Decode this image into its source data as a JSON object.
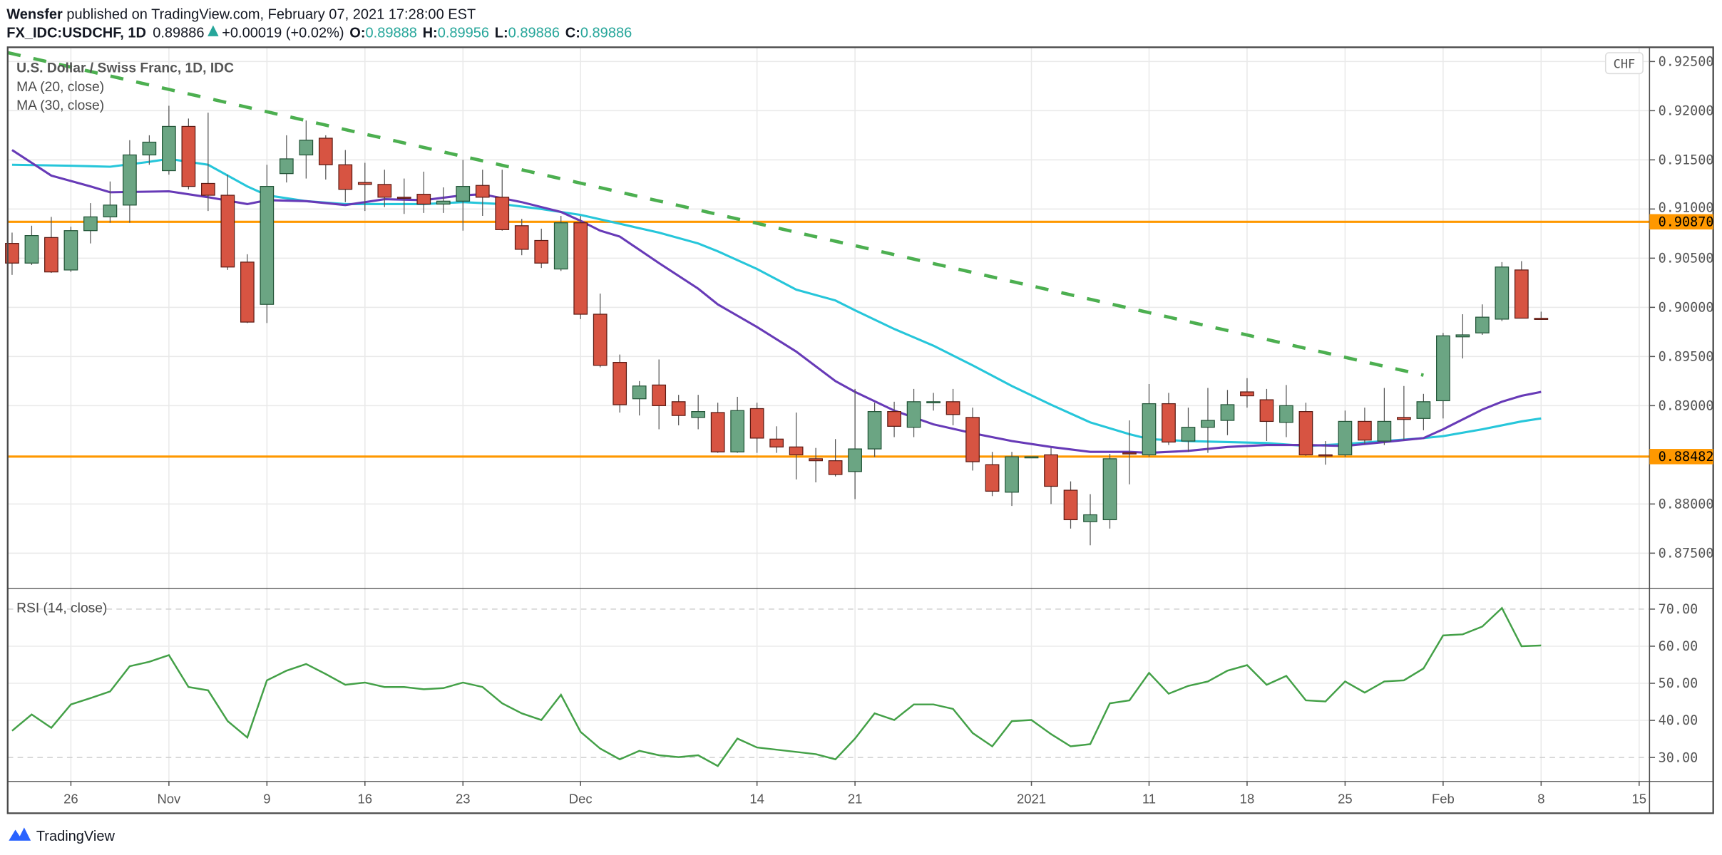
{
  "header": {
    "author": "Wensfer",
    "published": " published on TradingView.com, February 07, 2021 17:28:00 EST",
    "symbol": "FX_IDC:USDCHF, 1D",
    "last": "0.89886",
    "change": "+0.00019 (+0.02%)",
    "o_label": "O:",
    "o": "0.89888",
    "h_label": "H:",
    "h": "0.89956",
    "l_label": "L:",
    "l": "0.89886",
    "c_label": "C:",
    "c": "0.89886",
    "up_icon": "triangle-up-icon"
  },
  "legend": {
    "title": "U.S. Dollar / Swiss Franc, 1D, IDC",
    "ma20": "MA (20, close)",
    "ma30": "MA (30, close)",
    "rsi": "RSI (14, close)"
  },
  "currency_badge": "CHF",
  "footer": {
    "logo_text": "TradingView",
    "logo_icon": "tradingview-logo-icon"
  },
  "colors": {
    "up": "#6ba583",
    "down": "#d75442",
    "up_border": "#225437",
    "down_border": "#5b1a13",
    "ma20": "#673ab7",
    "ma30": "#26c6da",
    "trendline": "#4caf50",
    "levels": "#ff9800",
    "rsi": "#43a047"
  },
  "chart_data": [
    {
      "type": "candlestick",
      "title": "U.S. Dollar / Swiss Franc, 1D, IDC",
      "ylim": [
        0.8725,
        0.926
      ],
      "y_ticks": [
        "0.92500",
        "0.92000",
        "0.91500",
        "0.91000",
        "0.90500",
        "0.90000",
        "0.89500",
        "0.89000",
        "0.88000",
        "0.87500"
      ],
      "x_ticks": [
        {
          "bar": 3,
          "label": "26"
        },
        {
          "bar": 8,
          "label": "Nov"
        },
        {
          "bar": 13,
          "label": "9"
        },
        {
          "bar": 18,
          "label": "16"
        },
        {
          "bar": 23,
          "label": "23"
        },
        {
          "bar": 29,
          "label": "Dec"
        },
        {
          "bar": 38,
          "label": "14"
        },
        {
          "bar": 43,
          "label": "21"
        },
        {
          "bar": 52,
          "label": "2021"
        },
        {
          "bar": 58,
          "label": "11"
        },
        {
          "bar": 63,
          "label": "18"
        },
        {
          "bar": 68,
          "label": "25"
        },
        {
          "bar": 73,
          "label": "Feb"
        },
        {
          "bar": 78,
          "label": "8"
        },
        {
          "bar": 83,
          "label": "15"
        }
      ],
      "grid": true,
      "ohlc_columns": [
        "date",
        "open",
        "high",
        "low",
        "close"
      ],
      "ohlc": [
        [
          "2020-10-21",
          0.9065,
          0.9076,
          0.9033,
          0.9045
        ],
        [
          "2020-10-22",
          0.9045,
          0.9083,
          0.9043,
          0.9073
        ],
        [
          "2020-10-23",
          0.9071,
          0.9092,
          0.9035,
          0.9036
        ],
        [
          "2020-10-26",
          0.9038,
          0.9082,
          0.9036,
          0.9078
        ],
        [
          "2020-10-27",
          0.9078,
          0.9106,
          0.9065,
          0.9092
        ],
        [
          "2020-10-28",
          0.9092,
          0.9128,
          0.9086,
          0.9104
        ],
        [
          "2020-10-29",
          0.9104,
          0.917,
          0.9086,
          0.9155
        ],
        [
          "2020-10-30",
          0.9155,
          0.9175,
          0.9145,
          0.9168
        ],
        [
          "2020-11-02",
          0.9139,
          0.9205,
          0.9135,
          0.9184
        ],
        [
          "2020-11-03",
          0.9184,
          0.9192,
          0.912,
          0.9123
        ],
        [
          "2020-11-04",
          0.9126,
          0.9198,
          0.9098,
          0.9114
        ],
        [
          "2020-11-05",
          0.9114,
          0.9135,
          0.9038,
          0.9041
        ],
        [
          "2020-11-06",
          0.9046,
          0.9054,
          0.8984,
          0.8985
        ],
        [
          "2020-11-09",
          0.9003,
          0.9145,
          0.8984,
          0.9123
        ],
        [
          "2020-11-10",
          0.9136,
          0.9175,
          0.9127,
          0.9151
        ],
        [
          "2020-11-11",
          0.9155,
          0.919,
          0.9131,
          0.917
        ],
        [
          "2020-11-12",
          0.9172,
          0.9175,
          0.913,
          0.9145
        ],
        [
          "2020-11-13",
          0.9145,
          0.916,
          0.9107,
          0.912
        ],
        [
          "2020-11-16",
          0.9127,
          0.9147,
          0.9098,
          0.9125
        ],
        [
          "2020-11-17",
          0.9125,
          0.914,
          0.9102,
          0.9112
        ],
        [
          "2020-11-18",
          0.9112,
          0.9131,
          0.9095,
          0.9111
        ],
        [
          "2020-11-19",
          0.9115,
          0.9138,
          0.9096,
          0.9105
        ],
        [
          "2020-11-20",
          0.9105,
          0.9122,
          0.9096,
          0.9108
        ],
        [
          "2020-11-23",
          0.9108,
          0.915,
          0.9078,
          0.9123
        ],
        [
          "2020-11-24",
          0.9124,
          0.914,
          0.9093,
          0.9112
        ],
        [
          "2020-11-25",
          0.9112,
          0.914,
          0.9078,
          0.9079
        ],
        [
          "2020-11-26",
          0.9083,
          0.909,
          0.9053,
          0.9059
        ],
        [
          "2020-11-27",
          0.9068,
          0.908,
          0.904,
          0.9045
        ],
        [
          "2020-11-30",
          0.9039,
          0.9093,
          0.9037,
          0.9086
        ],
        [
          "2020-12-01",
          0.9086,
          0.9093,
          0.8988,
          0.8993
        ],
        [
          "2020-12-02",
          0.8993,
          0.9014,
          0.8939,
          0.8941
        ],
        [
          "2020-12-03",
          0.8944,
          0.8952,
          0.8893,
          0.8901
        ],
        [
          "2020-12-04",
          0.8907,
          0.8925,
          0.889,
          0.892
        ],
        [
          "2020-12-07",
          0.8921,
          0.8947,
          0.8876,
          0.89
        ],
        [
          "2020-12-08",
          0.8904,
          0.8911,
          0.888,
          0.889
        ],
        [
          "2020-12-09",
          0.8888,
          0.8911,
          0.8876,
          0.8894
        ],
        [
          "2020-12-10",
          0.8893,
          0.8903,
          0.8852,
          0.8853
        ],
        [
          "2020-12-11",
          0.8853,
          0.8909,
          0.8852,
          0.8895
        ],
        [
          "2020-12-14",
          0.8897,
          0.8903,
          0.8852,
          0.8867
        ],
        [
          "2020-12-15",
          0.8866,
          0.8879,
          0.8852,
          0.8858
        ],
        [
          "2020-12-16",
          0.8858,
          0.8893,
          0.8825,
          0.885
        ],
        [
          "2020-12-17",
          0.8846,
          0.8857,
          0.8822,
          0.8844
        ],
        [
          "2020-12-18",
          0.8844,
          0.8866,
          0.8828,
          0.883
        ],
        [
          "2020-12-21",
          0.8833,
          0.8917,
          0.8805,
          0.8856
        ],
        [
          "2020-12-22",
          0.8856,
          0.8903,
          0.8848,
          0.8894
        ],
        [
          "2020-12-23",
          0.8894,
          0.8904,
          0.8868,
          0.8879
        ],
        [
          "2020-12-24",
          0.8878,
          0.8917,
          0.8868,
          0.8904
        ],
        [
          "2020-12-25",
          0.8904,
          0.8913,
          0.8895,
          0.8904
        ],
        [
          "2020-12-28",
          0.8904,
          0.8917,
          0.888,
          0.8891
        ],
        [
          "2020-12-29",
          0.8888,
          0.8898,
          0.8834,
          0.8843
        ],
        [
          "2020-12-30",
          0.884,
          0.8853,
          0.8808,
          0.8813
        ],
        [
          "2020-12-31",
          0.8812,
          0.8853,
          0.8798,
          0.8848
        ],
        [
          "2021-01-01",
          0.8848,
          0.8848,
          0.8848,
          0.8848
        ],
        [
          "2021-01-04",
          0.885,
          0.8857,
          0.88,
          0.8818
        ],
        [
          "2021-01-05",
          0.8814,
          0.8823,
          0.8775,
          0.8784
        ],
        [
          "2021-01-06",
          0.8782,
          0.881,
          0.8758,
          0.8789
        ],
        [
          "2021-01-07",
          0.8784,
          0.8851,
          0.8775,
          0.8846
        ],
        [
          "2021-01-08",
          0.8852,
          0.8885,
          0.882,
          0.8851
        ],
        [
          "2021-01-11",
          0.885,
          0.8922,
          0.8848,
          0.8902
        ],
        [
          "2021-01-12",
          0.8902,
          0.8913,
          0.886,
          0.8863
        ],
        [
          "2021-01-13",
          0.8864,
          0.8898,
          0.8853,
          0.8878
        ],
        [
          "2021-01-14",
          0.8878,
          0.8918,
          0.8852,
          0.8885
        ],
        [
          "2021-01-15",
          0.8885,
          0.8916,
          0.887,
          0.8901
        ],
        [
          "2021-01-18",
          0.8914,
          0.8928,
          0.8898,
          0.891
        ],
        [
          "2021-01-19",
          0.8906,
          0.8917,
          0.8864,
          0.8884
        ],
        [
          "2021-01-20",
          0.8883,
          0.8921,
          0.8868,
          0.89
        ],
        [
          "2021-01-21",
          0.8894,
          0.8903,
          0.8849,
          0.885
        ],
        [
          "2021-01-22",
          0.885,
          0.8864,
          0.884,
          0.8849
        ],
        [
          "2021-01-25",
          0.885,
          0.8895,
          0.8848,
          0.8884
        ],
        [
          "2021-01-26",
          0.8884,
          0.8898,
          0.8861,
          0.8865
        ],
        [
          "2021-01-27",
          0.8864,
          0.8918,
          0.886,
          0.8884
        ],
        [
          "2021-01-28",
          0.8888,
          0.892,
          0.8865,
          0.8886
        ],
        [
          "2021-01-29",
          0.8887,
          0.8912,
          0.8875,
          0.8904
        ],
        [
          "2021-02-01",
          0.8905,
          0.8974,
          0.8887,
          0.8971
        ],
        [
          "2021-02-02",
          0.897,
          0.8993,
          0.8948,
          0.8972
        ],
        [
          "2021-02-03",
          0.8974,
          0.9003,
          0.8972,
          0.899
        ],
        [
          "2021-02-04",
          0.8988,
          0.9046,
          0.8986,
          0.9041
        ],
        [
          "2021-02-05",
          0.9038,
          0.9047,
          0.8989,
          0.8989
        ],
        [
          "2021-02-08",
          0.89888,
          0.89956,
          0.89886,
          0.89886
        ]
      ],
      "ma20": {
        "name": "MA (20, close)",
        "points": [
          [
            0,
            0.916
          ],
          [
            2,
            0.9134
          ],
          [
            4,
            0.9123
          ],
          [
            5,
            0.9117
          ],
          [
            8,
            0.9118
          ],
          [
            10,
            0.9112
          ],
          [
            12,
            0.9105
          ],
          [
            13,
            0.9109
          ],
          [
            15,
            0.9108
          ],
          [
            17,
            0.9104
          ],
          [
            19,
            0.911
          ],
          [
            21,
            0.9109
          ],
          [
            23,
            0.9114
          ],
          [
            24,
            0.9115
          ],
          [
            26,
            0.9107
          ],
          [
            28,
            0.9097
          ],
          [
            29,
            0.9088
          ],
          [
            30,
            0.9078
          ],
          [
            31,
            0.9072
          ],
          [
            33,
            0.9045
          ],
          [
            35,
            0.9019
          ],
          [
            36,
            0.9003
          ],
          [
            38,
            0.898
          ],
          [
            40,
            0.8955
          ],
          [
            42,
            0.8925
          ],
          [
            43,
            0.8914
          ],
          [
            45,
            0.8895
          ],
          [
            47,
            0.8881
          ],
          [
            49,
            0.8872
          ],
          [
            51,
            0.8864
          ],
          [
            53,
            0.8858
          ],
          [
            55,
            0.8853
          ],
          [
            57,
            0.8853
          ],
          [
            58,
            0.8852
          ],
          [
            60,
            0.8854
          ],
          [
            62,
            0.8858
          ],
          [
            64,
            0.886
          ],
          [
            66,
            0.886
          ],
          [
            68,
            0.8859
          ],
          [
            70,
            0.8863
          ],
          [
            72,
            0.8867
          ],
          [
            73,
            0.8876
          ],
          [
            75,
            0.8896
          ],
          [
            76,
            0.8904
          ],
          [
            77,
            0.891
          ],
          [
            78,
            0.8914
          ]
        ]
      },
      "ma30": {
        "name": "MA (30, close)",
        "points": [
          [
            0,
            0.9145
          ],
          [
            3,
            0.9144
          ],
          [
            5,
            0.9143
          ],
          [
            7,
            0.9148
          ],
          [
            8,
            0.9151
          ],
          [
            10,
            0.9145
          ],
          [
            12,
            0.9123
          ],
          [
            13,
            0.9114
          ],
          [
            15,
            0.9108
          ],
          [
            17,
            0.9105
          ],
          [
            19,
            0.9105
          ],
          [
            21,
            0.9105
          ],
          [
            23,
            0.9107
          ],
          [
            25,
            0.9105
          ],
          [
            27,
            0.91
          ],
          [
            29,
            0.9094
          ],
          [
            31,
            0.9085
          ],
          [
            33,
            0.9076
          ],
          [
            35,
            0.9065
          ],
          [
            36,
            0.9057
          ],
          [
            38,
            0.9039
          ],
          [
            40,
            0.9018
          ],
          [
            42,
            0.9007
          ],
          [
            43,
            0.8997
          ],
          [
            45,
            0.8978
          ],
          [
            47,
            0.8961
          ],
          [
            49,
            0.8941
          ],
          [
            51,
            0.892
          ],
          [
            53,
            0.8901
          ],
          [
            55,
            0.8883
          ],
          [
            57,
            0.8871
          ],
          [
            58,
            0.8866
          ],
          [
            60,
            0.8864
          ],
          [
            62,
            0.8863
          ],
          [
            64,
            0.8862
          ],
          [
            66,
            0.8859
          ],
          [
            68,
            0.8861
          ],
          [
            70,
            0.8864
          ],
          [
            72,
            0.8867
          ],
          [
            73,
            0.8869
          ],
          [
            75,
            0.8876
          ],
          [
            77,
            0.8884
          ],
          [
            78,
            0.8887
          ]
        ]
      },
      "trendline": {
        "style": "dashed",
        "points": [
          [
            0,
            0.9259
          ],
          [
            72,
            0.8931
          ]
        ]
      },
      "levels": [
        {
          "value": 0.9087,
          "label": "0.90870"
        },
        {
          "value": 0.88482,
          "label": "0.88482"
        }
      ]
    },
    {
      "type": "line",
      "title": "RSI (14, close)",
      "ylim": [
        22,
        75
      ],
      "y_ticks": [
        "70.00",
        "60.00",
        "50.00",
        "40.00",
        "30.00"
      ],
      "bands": [
        70,
        30
      ],
      "values": [
        37.2,
        41.6,
        38.0,
        44.3,
        46.0,
        47.8,
        54.6,
        55.8,
        57.6,
        49.0,
        48.1,
        39.8,
        35.4,
        50.8,
        53.4,
        55.2,
        52.5,
        49.6,
        50.2,
        49.0,
        49.0,
        48.4,
        48.7,
        50.2,
        49.0,
        44.6,
        41.9,
        40.1,
        46.9,
        36.9,
        32.4,
        29.5,
        31.8,
        30.6,
        30.1,
        30.6,
        27.7,
        35.1,
        32.7,
        32.1,
        31.5,
        30.9,
        29.5,
        35.1,
        41.9,
        40.1,
        44.3,
        44.3,
        43.1,
        36.6,
        33.0,
        39.8,
        40.1,
        36.3,
        33.0,
        33.6,
        44.6,
        45.4,
        52.8,
        47.2,
        49.3,
        50.5,
        53.4,
        54.9,
        49.6,
        52.0,
        45.4,
        45.1,
        50.5,
        47.5,
        50.5,
        50.8,
        54.0,
        62.9,
        63.2,
        65.3,
        70.3,
        60.0,
        60.2
      ]
    }
  ]
}
